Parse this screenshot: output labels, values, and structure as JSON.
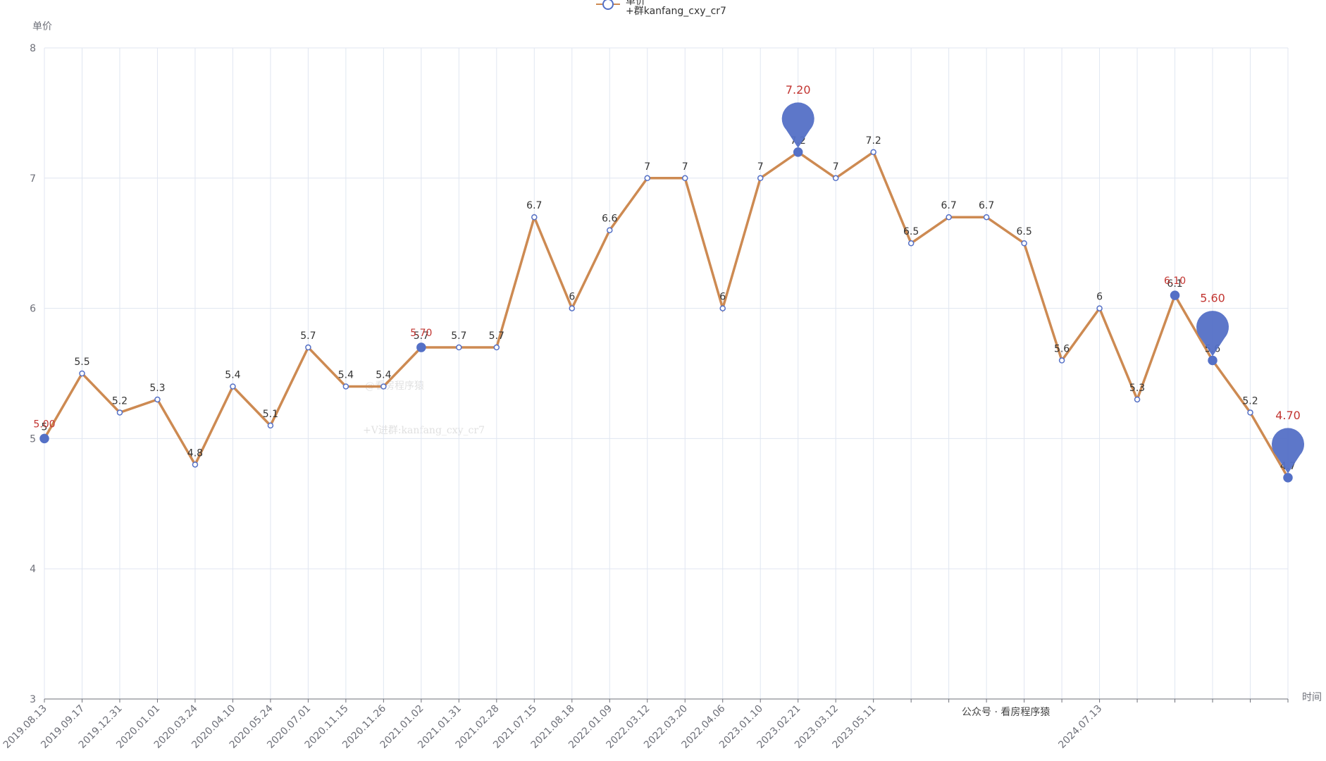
{
  "chart_data": {
    "type": "line",
    "legend_note": "+群kanfang_cxy_cr7",
    "y_axis_label": "单价",
    "x_axis_label": "时间",
    "watermarks": [
      "@看房程序猿",
      "+V进群:kanfang_cxy_cr7",
      "公众号 · 看房程序猿"
    ],
    "categories": [
      "2019.08.13",
      "2019.09.17",
      "2019.12.31",
      "2020.01.01",
      "2020.03.24",
      "2020.04.10",
      "2020.05.24",
      "2020.07.01",
      "2020.11.15",
      "2020.11.26",
      "2021.01.02",
      "2021.01.31",
      "2021.02.28",
      "2021.07.15",
      "2021.08.18",
      "2022.01.09",
      "2022.03.12",
      "2022.03.20",
      "2022.04.06",
      "2023.01.10",
      "2023.02.21",
      "2023.03.12",
      "2023.05.11",
      null,
      null,
      null,
      null,
      null,
      "2024.07.13",
      null,
      null,
      null,
      null,
      null
    ],
    "series": [
      {
        "name": "单价",
        "color": "#cd8a52",
        "marker_color": "#5470c6",
        "values": [
          5,
          5.5,
          5.2,
          5.3,
          4.8,
          5.4,
          5.1,
          5.7,
          5.4,
          5.4,
          5.7,
          5.7,
          5.7,
          6.7,
          6,
          6.6,
          7,
          7,
          6,
          7,
          7.2,
          7,
          7.2,
          6.5,
          6.7,
          6.7,
          6.5,
          5.6,
          6,
          5.3,
          6.1,
          5.6,
          5.2,
          4.7
        ],
        "dot_labels": [
          "5.00",
          null,
          null,
          null,
          null,
          null,
          null,
          null,
          null,
          null,
          "5.70",
          null,
          null,
          null,
          null,
          null,
          null,
          null,
          null,
          null,
          null,
          null,
          null,
          null,
          null,
          null,
          null,
          null,
          null,
          null,
          "6.10",
          null,
          null,
          null
        ],
        "pin_labels": [
          null,
          null,
          null,
          null,
          null,
          null,
          null,
          null,
          null,
          null,
          null,
          null,
          null,
          null,
          null,
          null,
          null,
          null,
          null,
          null,
          "7.20",
          null,
          null,
          null,
          null,
          null,
          null,
          null,
          null,
          null,
          null,
          "5.60",
          null,
          "4.70"
        ]
      }
    ],
    "mark_label_color": "#c23531",
    "ylim": [
      3,
      8
    ],
    "yticks": [
      3,
      4,
      5,
      6,
      7,
      8
    ],
    "grid": true
  }
}
